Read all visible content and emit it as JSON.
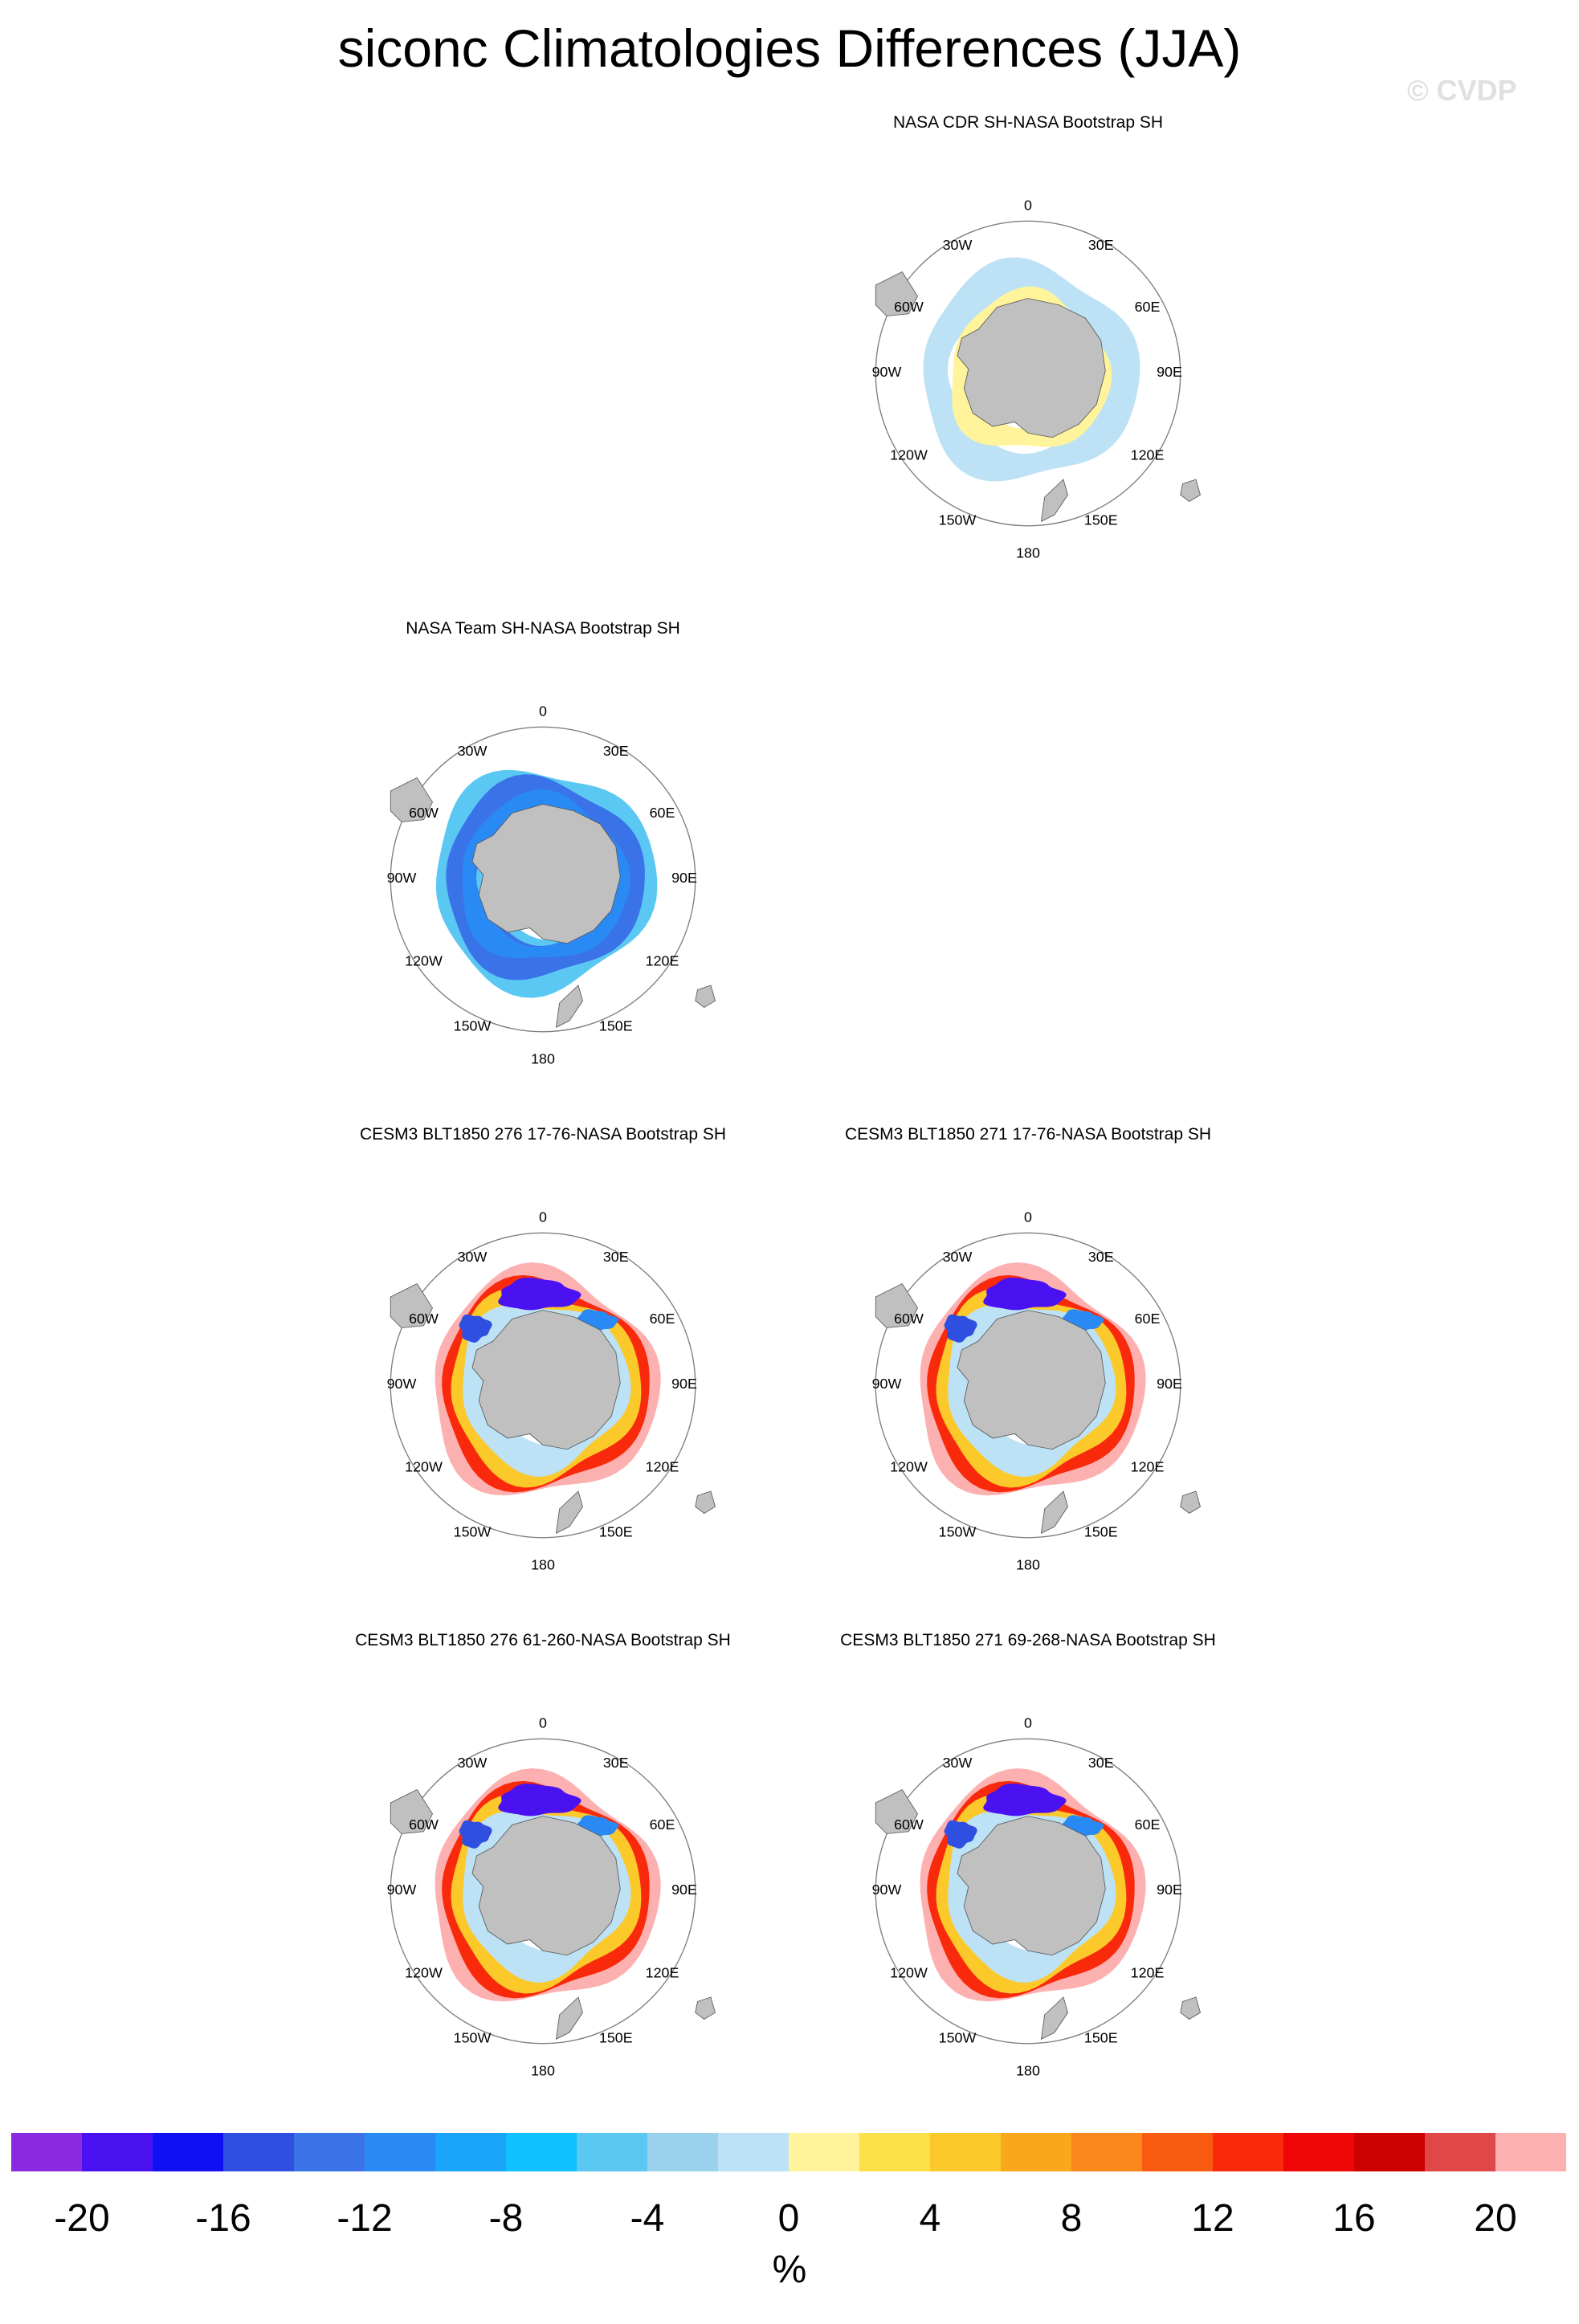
{
  "title": "siconc Climatologies Differences (JJA)",
  "watermark": "© CVDP",
  "longitude_labels": [
    "0",
    "30E",
    "60E",
    "90E",
    "120E",
    "150E",
    "180",
    "150W",
    "120W",
    "90W",
    "60W",
    "30W"
  ],
  "panels": [
    {
      "title": "NASA CDR SH-NASA Bootstrap SH",
      "pattern": "cdr"
    },
    {
      "title": "NASA Team SH-NASA Bootstrap SH",
      "pattern": "team"
    },
    {
      "title": "CESM3 BLT1850 276 17-76-NASA Bootstrap SH",
      "pattern": "model"
    },
    {
      "title": "CESM3 BLT1850 271 17-76-NASA Bootstrap SH",
      "pattern": "model"
    },
    {
      "title": "CESM3 BLT1850 276 61-260-NASA Bootstrap SH",
      "pattern": "model"
    },
    {
      "title": "CESM3 BLT1850 271 69-268-NASA Bootstrap SH",
      "pattern": "model"
    }
  ],
  "colorbar": {
    "unit": "%",
    "tick_labels": [
      "-20",
      "-16",
      "-12",
      "-8",
      "-4",
      "0",
      "4",
      "8",
      "12",
      "16",
      "20"
    ],
    "colors": [
      "#8a2be2",
      "#4a12f0",
      "#1010f5",
      "#2f4fe0",
      "#3a72e8",
      "#2a8af5",
      "#1aa5fa",
      "#10c0ff",
      "#5ac8f2",
      "#9ad2ee",
      "#bde2f5",
      "#fff49c",
      "#fde047",
      "#fbc92a",
      "#f9a71b",
      "#f9871b",
      "#f95c10",
      "#f92a0c",
      "#ee0606",
      "#cc0000",
      "#e04848",
      "#fdb0b0"
    ]
  },
  "colors": {
    "land": "#c0c0c0",
    "ocean_outline": "#808080"
  }
}
